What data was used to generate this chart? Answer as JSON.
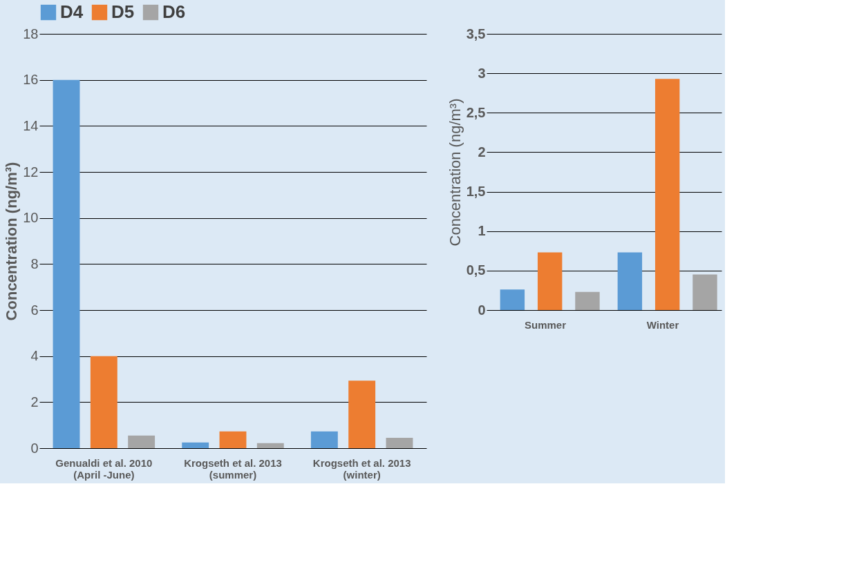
{
  "chart_data": [
    {
      "type": "bar",
      "categories": [
        "Genualdi et al. 2010\n(April -June)",
        "Krogseth et al. 2013\n(summer)",
        "Krogseth et al. 2013\n(winter)"
      ],
      "ylabel": "Concentration (ng/m³)",
      "series": [
        {
          "name": "D4",
          "color": "#5b9bd5",
          "values": [
            16,
            0.25,
            0.73
          ]
        },
        {
          "name": "D5",
          "color": "#ed7d31",
          "values": [
            4,
            0.73,
            2.93
          ]
        },
        {
          "name": "D6",
          "color": "#a5a5a5",
          "values": [
            0.55,
            0.22,
            0.45
          ]
        }
      ],
      "ylim": [
        0,
        18
      ],
      "yticks": [
        0,
        2,
        4,
        6,
        8,
        10,
        12,
        14,
        16,
        18
      ],
      "grid": "y",
      "legend": "top"
    },
    {
      "type": "bar",
      "categories": [
        "Summer",
        "Winter"
      ],
      "ylabel": "Concentration (ng/m³)",
      "series": [
        {
          "color": "#5b9bd5",
          "values": [
            0.26,
            0.73
          ]
        },
        {
          "color": "#ed7d31",
          "values": [
            0.73,
            2.93
          ]
        },
        {
          "color": "#a5a5a5",
          "values": [
            0.23,
            0.45
          ]
        }
      ],
      "ylim": [
        0,
        3.5
      ],
      "yticks": [
        0,
        {
          "value": 0.5,
          "label": "0,5"
        },
        1,
        {
          "value": 1.5,
          "label": "1,5"
        },
        2,
        {
          "value": 2.5,
          "label": "2,5"
        },
        3,
        {
          "value": 3.5,
          "label": "3,5"
        }
      ],
      "grid": "y"
    }
  ]
}
